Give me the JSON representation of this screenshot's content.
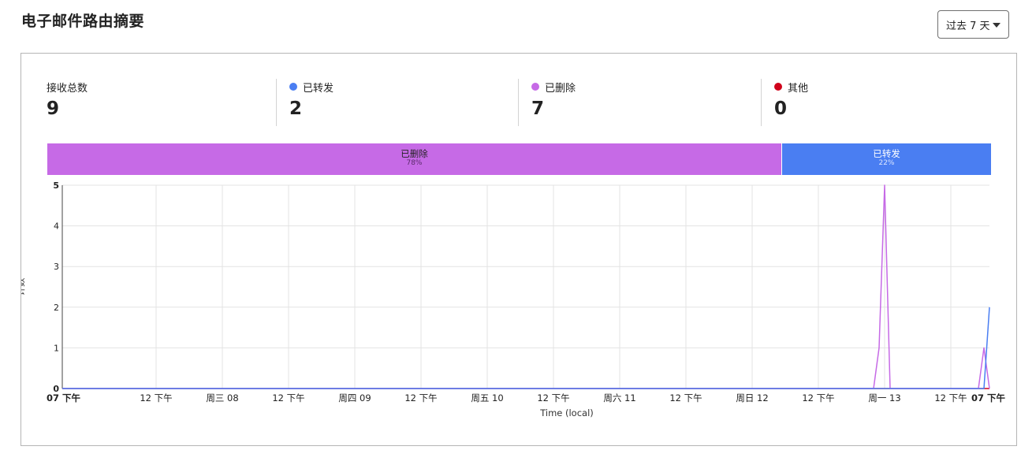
{
  "header": {
    "title": "电子邮件路由摘要",
    "range_label": "过去 7 天"
  },
  "stats": [
    {
      "label": "接收总数",
      "value": "9",
      "color": ""
    },
    {
      "label": "已转发",
      "value": "2",
      "color": "#4a7ef2"
    },
    {
      "label": "已删除",
      "value": "7",
      "color": "#c66ae6"
    },
    {
      "label": "其他",
      "value": "0",
      "color": "#d0021b"
    }
  ],
  "breakdown": [
    {
      "label": "已删除",
      "pct_text": "78%",
      "fraction": 0.7778,
      "color": "#c66ae6",
      "text_color": "#222222",
      "pct_color": "#5a2a6a"
    },
    {
      "label": "已转发",
      "pct_text": "22%",
      "fraction": 0.2222,
      "color": "#4a7ef2",
      "text_color": "#ffffff",
      "pct_color": "#dce6ff"
    }
  ],
  "chart_data": {
    "type": "line",
    "xlabel": "Time (local)",
    "ylabel": "计数",
    "ylim": [
      0,
      5
    ],
    "yticks": [
      0,
      1,
      2,
      3,
      4,
      5
    ],
    "xlim": [
      0,
      168
    ],
    "x_ticks": [
      {
        "t": 0,
        "label": "07 下午",
        "bold": true
      },
      {
        "t": 17,
        "label": "12 下午",
        "bold": false
      },
      {
        "t": 29,
        "label": "周三 08",
        "bold": false
      },
      {
        "t": 41,
        "label": "12 下午",
        "bold": false
      },
      {
        "t": 53,
        "label": "周四 09",
        "bold": false
      },
      {
        "t": 65,
        "label": "12 下午",
        "bold": false
      },
      {
        "t": 77,
        "label": "周五 10",
        "bold": false
      },
      {
        "t": 89,
        "label": "12 下午",
        "bold": false
      },
      {
        "t": 101,
        "label": "周六 11",
        "bold": false
      },
      {
        "t": 113,
        "label": "12 下午",
        "bold": false
      },
      {
        "t": 125,
        "label": "周日 12",
        "bold": false
      },
      {
        "t": 137,
        "label": "12 下午",
        "bold": false
      },
      {
        "t": 149,
        "label": "周一 13",
        "bold": false
      },
      {
        "t": 161,
        "label": "12 下午",
        "bold": false
      },
      {
        "t": 168,
        "label": "07 下午",
        "bold": true
      }
    ],
    "grid": true,
    "series": [
      {
        "name": "其他",
        "color": "#d0021b",
        "points": [
          [
            0,
            0
          ],
          [
            168,
            0
          ]
        ]
      },
      {
        "name": "已删除",
        "color": "#c66ae6",
        "points": [
          [
            0,
            0
          ],
          [
            147,
            0
          ],
          [
            148,
            1
          ],
          [
            149,
            5
          ],
          [
            150,
            0
          ],
          [
            166,
            0
          ],
          [
            167,
            1
          ],
          [
            168,
            0
          ]
        ]
      },
      {
        "name": "已转发",
        "color": "#4a7ef2",
        "points": [
          [
            0,
            0
          ],
          [
            167,
            0
          ],
          [
            168,
            2
          ]
        ]
      }
    ]
  }
}
